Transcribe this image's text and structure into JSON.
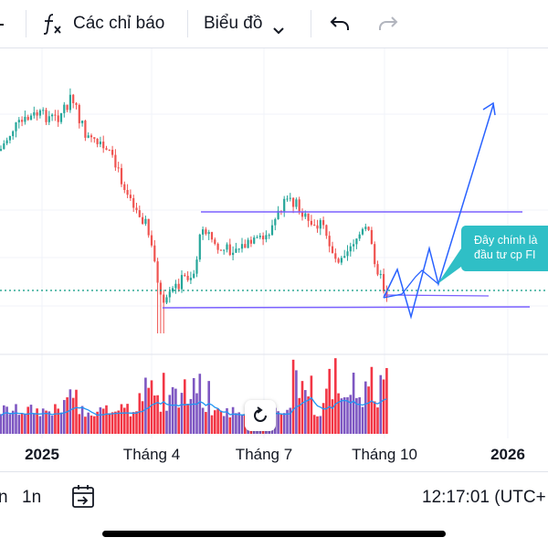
{
  "toolbar": {
    "indicators_icon": "function-fx-icon",
    "indicators_label": "Các chỉ báo",
    "chart_type_label": "Biểu đồ",
    "undo_icon": "undo-arrow-icon",
    "redo_icon": "redo-arrow-icon"
  },
  "chart": {
    "x_axis_labels": [
      "2025",
      "Tháng 4",
      "Tháng 7",
      "Tháng 10",
      "2026"
    ],
    "callout_lines": [
      "Đây chính là",
      "đầu tư cp FI"
    ],
    "reset_icon": "reset-rotate-icon",
    "colors": {
      "up": "#26a69a",
      "down": "#ef5350",
      "vol_up": "#7e57c2",
      "vol_down": "#f23645",
      "drawing": "#7b61ff",
      "arrow": "#2962ff",
      "price_line": "#089981",
      "callout_bg": "#2fbfc6"
    }
  },
  "bottombar": {
    "interval_partial_left": "n",
    "interval_1n": "1n",
    "calendar_icon": "calendar-goto-icon",
    "clock": "12:17:01 (UTC+"
  }
}
